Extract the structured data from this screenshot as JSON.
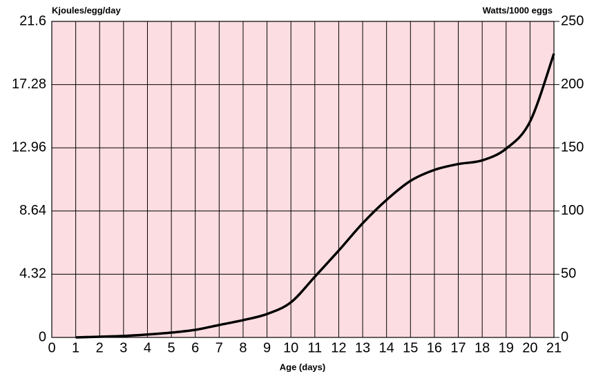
{
  "chart_data": {
    "type": "line",
    "y_label": "Kjoules/egg/day",
    "y2_label": "Watts/1000 eggs",
    "x_label": "Age (days)",
    "x": [
      1,
      2,
      3,
      4,
      5,
      6,
      7,
      8,
      9,
      10,
      11,
      12,
      13,
      14,
      15,
      16,
      17,
      18,
      19,
      20,
      21
    ],
    "series": [
      {
        "color": "#000000",
        "values": [
          0,
          0.05,
          0.1,
          0.2,
          0.33,
          0.52,
          0.85,
          1.18,
          1.6,
          2.4,
          4.15,
          5.94,
          7.8,
          9.4,
          10.7,
          11.45,
          11.85,
          12.1,
          12.9,
          14.75,
          19.4
        ]
      }
    ],
    "xlim": [
      0,
      21
    ],
    "xticks": [
      0,
      1,
      2,
      3,
      4,
      5,
      6,
      7,
      8,
      9,
      10,
      11,
      12,
      13,
      14,
      15,
      16,
      17,
      18,
      19,
      20,
      21
    ],
    "ylim": [
      0,
      21.6
    ],
    "yticks": [
      0,
      4.32,
      8.64,
      12.96,
      17.28,
      21.6
    ],
    "y2lim": [
      0,
      250
    ],
    "y2ticks": [
      0,
      50,
      100,
      150,
      200,
      250
    ],
    "grid": true,
    "background": "#fcdde1"
  }
}
